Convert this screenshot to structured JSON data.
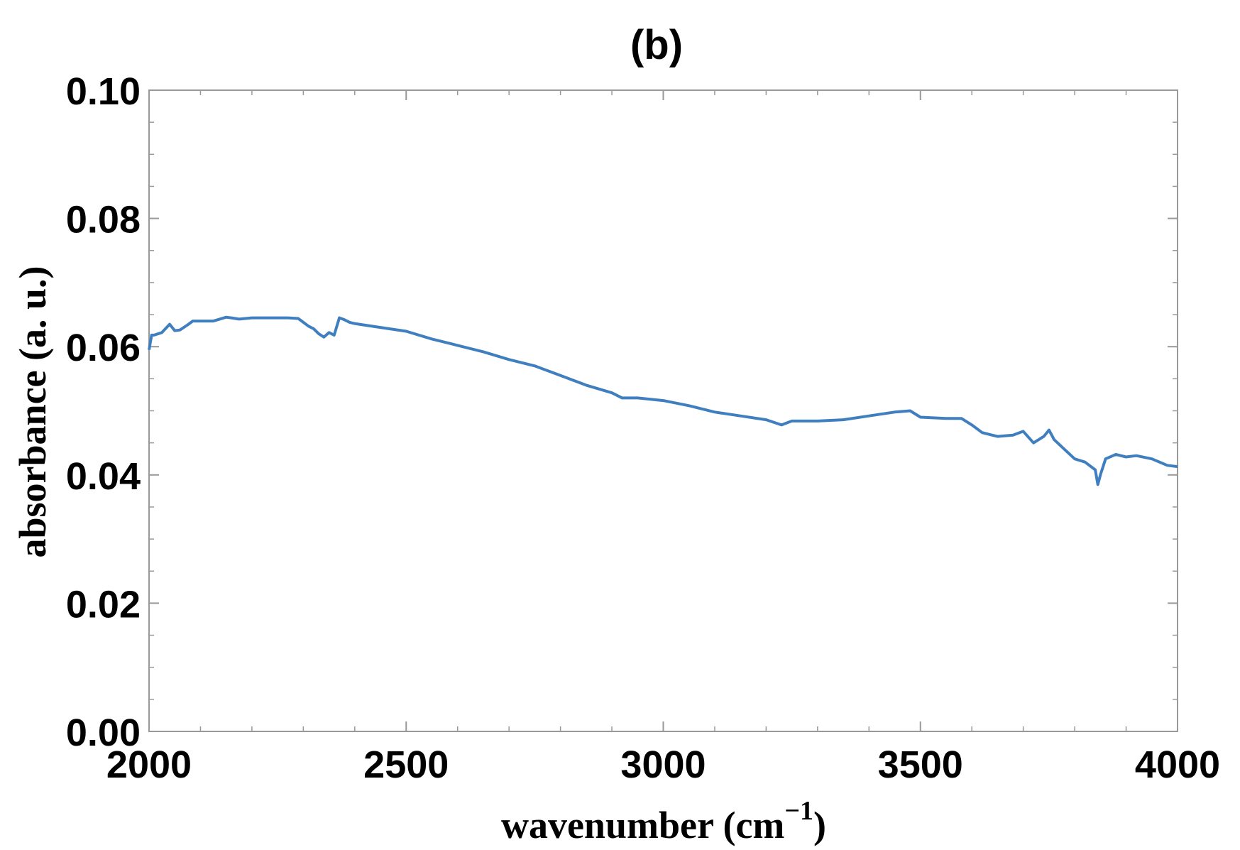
{
  "chart_data": {
    "type": "line",
    "title": "(b)",
    "xlabel": "wavenumber (cm",
    "xlabel_superscript": "−1",
    "xlabel_close": ")",
    "ylabel": "absorbance   (a. u.)",
    "xlim": [
      2000,
      4000
    ],
    "ylim": [
      0.0,
      0.1
    ],
    "x_ticks": [
      2000,
      2500,
      3000,
      3500,
      4000
    ],
    "x_tick_labels": [
      "2000",
      "2500",
      "3000",
      "3500",
      "4000"
    ],
    "y_ticks": [
      0.0,
      0.02,
      0.04,
      0.06,
      0.08,
      0.1
    ],
    "y_tick_labels": [
      "0.00",
      "0.02",
      "0.04",
      "0.06",
      "0.08",
      "0.10"
    ],
    "grid": false,
    "series": [
      {
        "color": "#3f7fbf",
        "x": [
          2000,
          2005,
          2010,
          2025,
          2040,
          2050,
          2060,
          2075,
          2085,
          2100,
          2125,
          2150,
          2160,
          2175,
          2200,
          2225,
          2250,
          2270,
          2290,
          2300,
          2310,
          2320,
          2330,
          2340,
          2350,
          2360,
          2370,
          2380,
          2390,
          2400,
          2450,
          2500,
          2550,
          2600,
          2650,
          2700,
          2750,
          2800,
          2850,
          2900,
          2920,
          2950,
          3000,
          3050,
          3100,
          3150,
          3200,
          3230,
          3250,
          3300,
          3350,
          3400,
          3450,
          3480,
          3500,
          3550,
          3580,
          3600,
          3620,
          3650,
          3680,
          3700,
          3720,
          3740,
          3750,
          3760,
          3780,
          3800,
          3820,
          3840,
          3845,
          3850,
          3860,
          3880,
          3900,
          3920,
          3950,
          3980,
          4000
        ],
        "y": [
          0.0595,
          0.0618,
          0.0618,
          0.0622,
          0.0635,
          0.0625,
          0.0626,
          0.0634,
          0.064,
          0.064,
          0.064,
          0.0646,
          0.0645,
          0.0643,
          0.0645,
          0.0645,
          0.0645,
          0.0645,
          0.0644,
          0.0638,
          0.0632,
          0.0628,
          0.062,
          0.0615,
          0.0622,
          0.0618,
          0.0645,
          0.0642,
          0.0638,
          0.0636,
          0.063,
          0.0624,
          0.0612,
          0.0602,
          0.0592,
          0.058,
          0.057,
          0.0555,
          0.054,
          0.0528,
          0.052,
          0.052,
          0.0516,
          0.0508,
          0.0498,
          0.0492,
          0.0486,
          0.0478,
          0.0484,
          0.0484,
          0.0486,
          0.0492,
          0.0498,
          0.05,
          0.049,
          0.0488,
          0.0488,
          0.0478,
          0.0466,
          0.046,
          0.0462,
          0.0468,
          0.045,
          0.046,
          0.047,
          0.0455,
          0.044,
          0.0425,
          0.042,
          0.0408,
          0.0385,
          0.04,
          0.0425,
          0.0432,
          0.0428,
          0.043,
          0.0425,
          0.0415,
          0.0413
        ]
      }
    ]
  }
}
